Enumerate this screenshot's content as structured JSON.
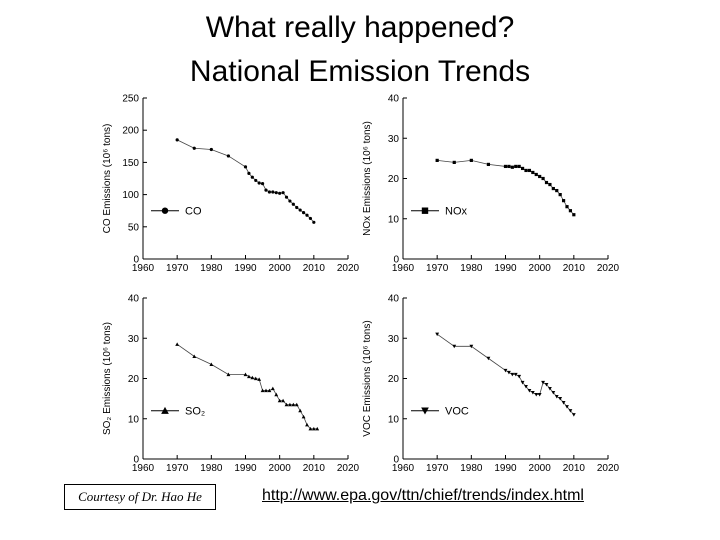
{
  "header": {
    "title_line1": "What really happened?",
    "title_line2": "National Emission Trends"
  },
  "footer": {
    "credit": "Courtesy of Dr. Hao He",
    "url": "http://www.epa.gov/ttn/chief/trends/index.html"
  },
  "chart_data": [
    {
      "type": "line",
      "ylabel": "CO Emissions (10⁶ tons)",
      "xlim": [
        1960,
        2020
      ],
      "ylim": [
        0,
        250
      ],
      "xticks": [
        1960,
        1970,
        1980,
        1990,
        2000,
        2010,
        2020
      ],
      "yticks": [
        0,
        50,
        100,
        150,
        200,
        250
      ],
      "legend": "CO",
      "marker": "circle",
      "series": [
        {
          "name": "CO",
          "x": [
            1970,
            1975,
            1980,
            1985,
            1990,
            1991,
            1992,
            1993,
            1994,
            1995,
            1996,
            1997,
            1998,
            1999,
            2000,
            2001,
            2002,
            2003,
            2004,
            2005,
            2006,
            2007,
            2008,
            2009,
            2010
          ],
          "y": [
            185,
            172,
            170,
            160,
            143,
            133,
            127,
            122,
            118,
            117,
            107,
            104,
            104,
            103,
            102,
            103,
            96,
            90,
            85,
            80,
            76,
            72,
            68,
            63,
            57
          ]
        }
      ]
    },
    {
      "type": "line",
      "ylabel": "NOx Emissions (10⁶ tons)",
      "xlim": [
        1960,
        2020
      ],
      "ylim": [
        0,
        40
      ],
      "xticks": [
        1960,
        1970,
        1980,
        1990,
        2000,
        2010,
        2020
      ],
      "yticks": [
        0,
        10,
        20,
        30,
        40
      ],
      "legend": "NOx",
      "marker": "square",
      "series": [
        {
          "name": "NOx",
          "x": [
            1970,
            1975,
            1980,
            1985,
            1990,
            1991,
            1992,
            1993,
            1994,
            1995,
            1996,
            1997,
            1998,
            1999,
            2000,
            2001,
            2002,
            2003,
            2004,
            2005,
            2006,
            2007,
            2008,
            2009,
            2010
          ],
          "y": [
            24.5,
            24,
            24.5,
            23.5,
            23,
            23,
            22.8,
            23,
            23,
            22.5,
            22,
            22,
            21.5,
            21,
            20.5,
            20,
            19,
            18.5,
            17.5,
            17,
            16,
            14.5,
            13,
            12,
            11
          ]
        }
      ]
    },
    {
      "type": "line",
      "ylabel": "SO₂ Emissions (10⁶ tons)",
      "xlim": [
        1960,
        2020
      ],
      "ylim": [
        0,
        40
      ],
      "xticks": [
        1960,
        1970,
        1980,
        1990,
        2000,
        2010,
        2020
      ],
      "yticks": [
        0,
        10,
        20,
        30,
        40
      ],
      "legend": "SO₂",
      "marker": "triangle",
      "series": [
        {
          "name": "SO₂",
          "x": [
            1970,
            1975,
            1980,
            1985,
            1990,
            1991,
            1992,
            1993,
            1994,
            1995,
            1996,
            1997,
            1998,
            1999,
            2000,
            2001,
            2002,
            2003,
            2004,
            2005,
            2006,
            2007,
            2008,
            2009,
            2010,
            2011
          ],
          "y": [
            28.5,
            25.5,
            23.5,
            21,
            21,
            20.5,
            20.2,
            20,
            19.8,
            17,
            17,
            17,
            17.5,
            16,
            14.5,
            14.5,
            13.5,
            13.5,
            13.5,
            13.5,
            12,
            10.5,
            8.5,
            7.5,
            7.5,
            7.5
          ]
        }
      ]
    },
    {
      "type": "line",
      "ylabel": "VOC Emissions (10⁶ tons)",
      "xlim": [
        1960,
        2020
      ],
      "ylim": [
        0,
        40
      ],
      "xticks": [
        1960,
        1970,
        1980,
        1990,
        2000,
        2010,
        2020
      ],
      "yticks": [
        0,
        10,
        20,
        30,
        40
      ],
      "legend": "VOC",
      "marker": "triangle-down",
      "series": [
        {
          "name": "VOC",
          "x": [
            1970,
            1975,
            1980,
            1985,
            1990,
            1991,
            1992,
            1993,
            1994,
            1995,
            1996,
            1997,
            1998,
            1999,
            2000,
            2001,
            2002,
            2003,
            2004,
            2005,
            2006,
            2007,
            2008,
            2009,
            2010
          ],
          "y": [
            31,
            28,
            28,
            25,
            22,
            21.5,
            21,
            21,
            20.5,
            19,
            18,
            17,
            16.5,
            16,
            16,
            19,
            18.5,
            17.5,
            16.5,
            15.5,
            15,
            14,
            13,
            12,
            11
          ]
        }
      ]
    }
  ]
}
